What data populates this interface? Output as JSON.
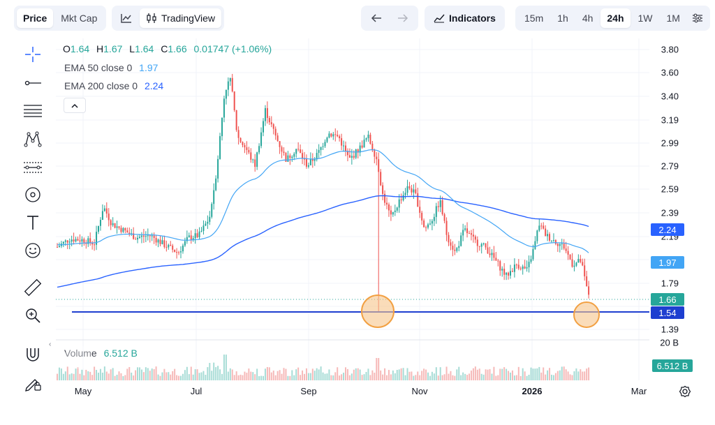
{
  "toolbar": {
    "price_tab": "Price",
    "mktcap_tab": "Mkt Cap",
    "tradingview_label": "TradingView",
    "indicators_label": "Indicators",
    "timeframes": [
      "15m",
      "1h",
      "4h",
      "24h",
      "1W",
      "1M"
    ],
    "active_timeframe": "24h"
  },
  "legend": {
    "o_label": "O",
    "o_value": "1.64",
    "h_label": "H",
    "h_value": "1.67",
    "l_label": "L",
    "l_value": "1.64",
    "c_label": "C",
    "c_value": "1.66",
    "change": "0.01747 (+1.06%)",
    "ema50_label": "EMA 50 close 0",
    "ema50_value": "1.97",
    "ema200_label": "EMA 200 close 0",
    "ema200_value": "2.24",
    "volume_label": "Volume",
    "volume_value": "6.512 B"
  },
  "colors": {
    "up": "#26a69a",
    "down": "#ef5350",
    "ema50": "#42a5f5",
    "ema200": "#2962ff",
    "hline": "#1e3fd0",
    "marker_fill": "#f7c48a",
    "marker_stroke": "#f2a042"
  },
  "chart_data": {
    "type": "candlestick",
    "y_ticks": [
      "3.80",
      "3.60",
      "3.40",
      "3.19",
      "2.99",
      "2.79",
      "2.59",
      "2.39",
      "2.19",
      "1.79",
      "1.39"
    ],
    "x_ticks": [
      "May",
      "Jul",
      "Sep",
      "Nov",
      "2026",
      "Mar"
    ],
    "ylim": [
      1.37,
      3.84
    ],
    "price_tags": [
      {
        "label": "2.24",
        "series": "EMA 200"
      },
      {
        "label": "1.97",
        "series": "EMA 50"
      },
      {
        "label": "1.66",
        "series": "Last price"
      },
      {
        "label": "1.54",
        "series": "Horizontal line"
      }
    ],
    "volume_tag": "6.512 B",
    "volume_axis_tick": "20 B",
    "horizontal_line": 1.54,
    "last_price": 1.66,
    "ema50_last": 1.97,
    "ema200_last": 2.24
  }
}
